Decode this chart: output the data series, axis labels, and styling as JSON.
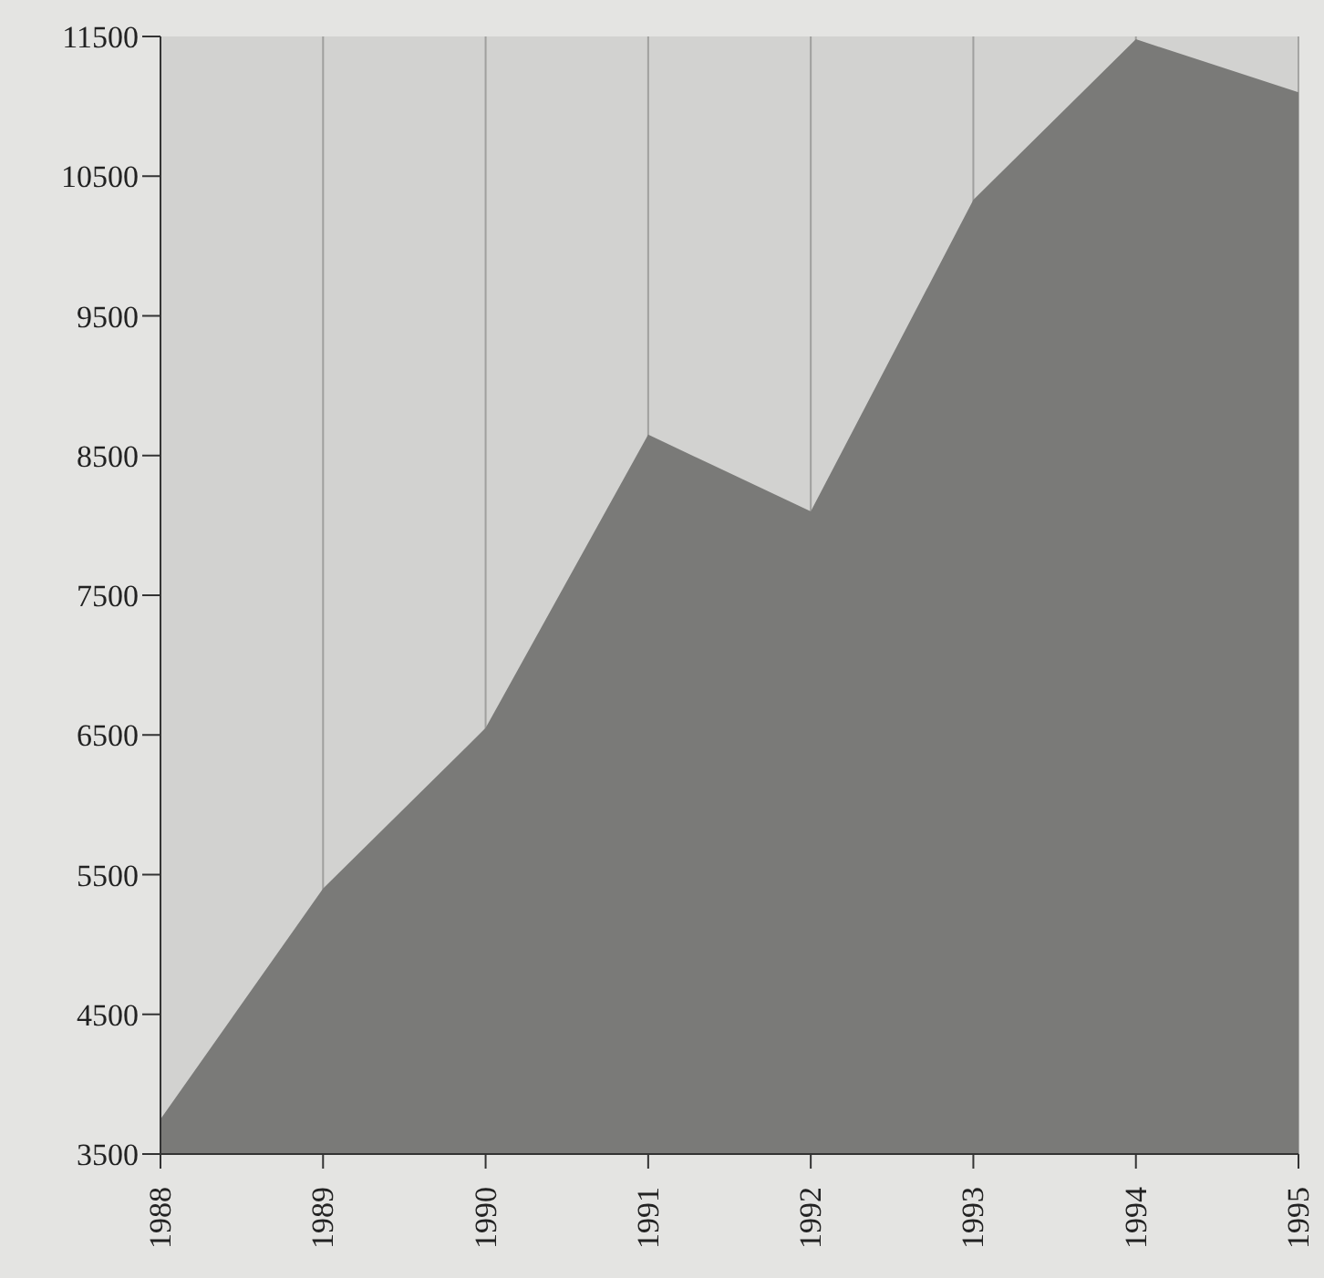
{
  "chart_data": {
    "type": "area",
    "categories": [
      "1988",
      "1989",
      "1990",
      "1991",
      "1992",
      "1993",
      "1994",
      "1995"
    ],
    "values": [
      3750,
      5400,
      6550,
      8650,
      8100,
      10330,
      11480,
      11100
    ],
    "color": "#7a7a78",
    "ylim": [
      3500,
      11500
    ],
    "yticks": [
      3500,
      4500,
      5500,
      6500,
      7500,
      8500,
      9500,
      10500,
      11500
    ],
    "grid": "x"
  }
}
